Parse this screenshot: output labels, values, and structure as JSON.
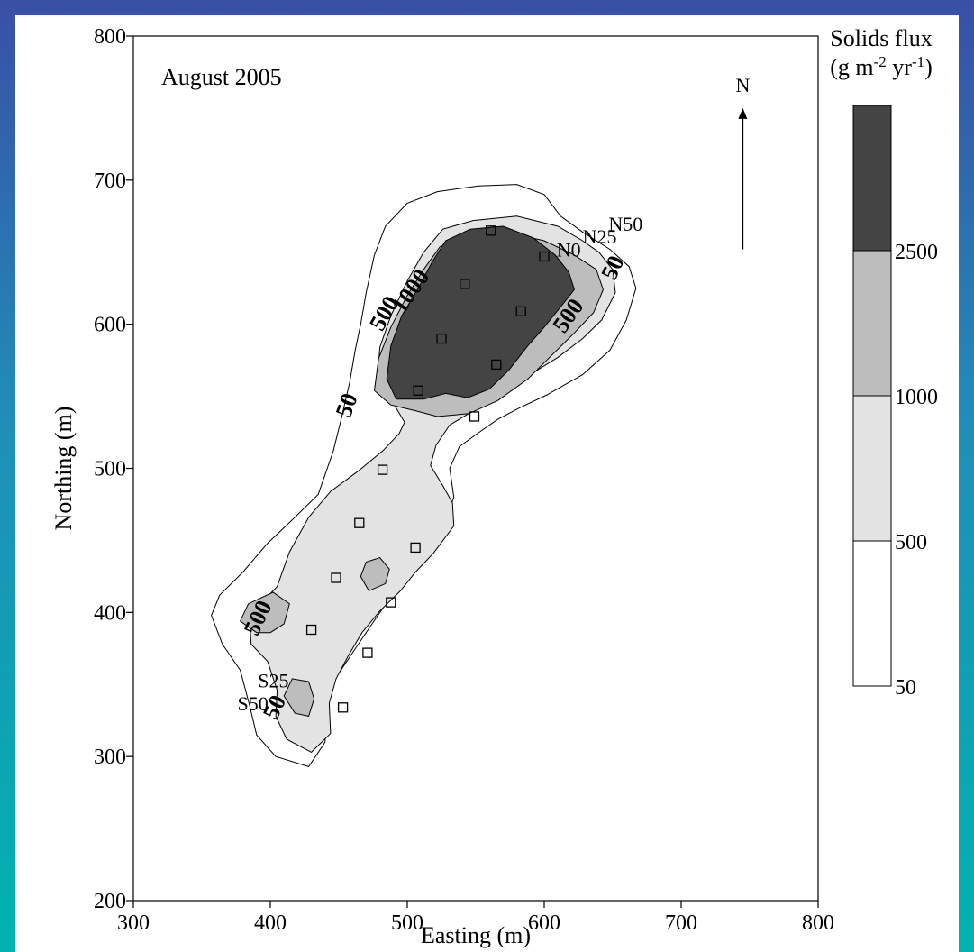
{
  "chart_data": {
    "type": "contour-map",
    "annotation": "August 2005",
    "xlabel": "Easting (m)",
    "ylabel": "Northing (m)",
    "xlim": [
      300,
      800
    ],
    "ylim": [
      200,
      800
    ],
    "x_ticks": [
      300,
      400,
      500,
      600,
      700,
      800
    ],
    "y_ticks": [
      200,
      300,
      400,
      500,
      600,
      700,
      800
    ],
    "grid": false,
    "north_arrow": {
      "label": "N",
      "x": 745,
      "y_from": 652,
      "y_to": 750
    },
    "colorbar": {
      "title_line1": "Solids flux",
      "title_line2": "(g m-2 yr-1)",
      "title_prefix": "(g m",
      "title_sup1": "-2",
      "title_mid": " yr",
      "title_sup2": "-1",
      "title_suffix": ")",
      "placement": "right",
      "levels": [
        {
          "label": "50",
          "color": "#ffffff"
        },
        {
          "label": "500",
          "color": "#e3e3e3"
        },
        {
          "label": "1000",
          "color": "#bdbdbd"
        },
        {
          "label": "2500",
          "color": "#444444"
        }
      ],
      "colors": [
        "#ffffff",
        "#e3e3e3",
        "#bdbdbd",
        "#444444"
      ]
    },
    "contours": [
      {
        "level": 50,
        "fill": "#ffffff",
        "polygons": [
          [
            [
              428,
              293
            ],
            [
              404,
              300
            ],
            [
              390,
              315
            ],
            [
              385,
              335
            ],
            [
              378,
              360
            ],
            [
              365,
              378
            ],
            [
              357,
              398
            ],
            [
              363,
              412
            ],
            [
              380,
              428
            ],
            [
              398,
              448
            ],
            [
              418,
              466
            ],
            [
              435,
              482
            ],
            [
              446,
              512
            ],
            [
              452,
              535
            ],
            [
              458,
              560
            ],
            [
              462,
              582
            ],
            [
              466,
              600
            ],
            [
              470,
              622
            ],
            [
              476,
              648
            ],
            [
              484,
              668
            ],
            [
              500,
              684
            ],
            [
              522,
              692
            ],
            [
              552,
              696
            ],
            [
              580,
              697
            ],
            [
              600,
              690
            ],
            [
              612,
              675
            ],
            [
              628,
              664
            ],
            [
              648,
              652
            ],
            [
              662,
              640
            ],
            [
              667,
              625
            ],
            [
              660,
              603
            ],
            [
              648,
              582
            ],
            [
              628,
              565
            ],
            [
              602,
              551
            ],
            [
              582,
              542
            ],
            [
              566,
              534
            ],
            [
              551,
              524
            ],
            [
              538,
              515
            ],
            [
              531,
              500
            ],
            [
              534,
              480
            ],
            [
              526,
              458
            ],
            [
              514,
              440
            ],
            [
              504,
              428
            ],
            [
              488,
              411
            ],
            [
              475,
              393
            ],
            [
              460,
              372
            ],
            [
              446,
              352
            ],
            [
              440,
              332
            ],
            [
              440,
              310
            ]
          ]
        ]
      },
      {
        "level": 500,
        "fill": "#e3e3e3",
        "polygons": [
          [
            [
              430,
              303
            ],
            [
              412,
              312
            ],
            [
              404,
              328
            ],
            [
              405,
              346
            ],
            [
              398,
              366
            ],
            [
              386,
              378
            ],
            [
              385,
              394
            ],
            [
              395,
              408
            ],
            [
              405,
              418
            ],
            [
              414,
              442
            ],
            [
              428,
              466
            ],
            [
              444,
              484
            ],
            [
              464,
              498
            ],
            [
              482,
              512
            ],
            [
              494,
              524
            ],
            [
              498,
              532
            ],
            [
              490,
              545
            ],
            [
              478,
              560
            ],
            [
              480,
              584
            ],
            [
              488,
              606
            ],
            [
              500,
              630
            ],
            [
              512,
              650
            ],
            [
              526,
              666
            ],
            [
              548,
              672
            ],
            [
              580,
              675
            ],
            [
              610,
              668
            ],
            [
              628,
              658
            ],
            [
              640,
              650
            ],
            [
              650,
              638
            ],
            [
              652,
              622
            ],
            [
              642,
              603
            ],
            [
              628,
              590
            ],
            [
              610,
              577
            ],
            [
              586,
              563
            ],
            [
              568,
              551
            ],
            [
              550,
              541
            ],
            [
              531,
              530
            ],
            [
              521,
              516
            ],
            [
              517,
              502
            ],
            [
              526,
              488
            ],
            [
              533,
              476
            ],
            [
              534,
              460
            ],
            [
              519,
              441
            ],
            [
              506,
              428
            ],
            [
              495,
              415
            ],
            [
              480,
              401
            ],
            [
              467,
              386
            ],
            [
              457,
              370
            ],
            [
              448,
              354
            ],
            [
              443,
              337
            ],
            [
              444,
              316
            ]
          ]
        ]
      },
      {
        "level": 1000,
        "fill": "#bdbdbd",
        "polygons": [
          [
            [
              488,
              544
            ],
            [
              476,
              554
            ],
            [
              479,
              576
            ],
            [
              488,
              598
            ],
            [
              500,
              620
            ],
            [
              512,
              638
            ],
            [
              524,
              654
            ],
            [
              542,
              660
            ],
            [
              572,
              664
            ],
            [
              600,
              658
            ],
            [
              622,
              648
            ],
            [
              638,
              638
            ],
            [
              643,
              624
            ],
            [
              636,
              608
            ],
            [
              622,
              594
            ],
            [
              605,
              578
            ],
            [
              588,
              562
            ],
            [
              566,
              547
            ],
            [
              545,
              538
            ],
            [
              522,
              536
            ],
            [
              506,
              540
            ]
          ],
          [
            [
              418,
              330
            ],
            [
              410,
              342
            ],
            [
              416,
              354
            ],
            [
              428,
              352
            ],
            [
              432,
              340
            ],
            [
              428,
              328
            ]
          ],
          [
            [
              390,
              386
            ],
            [
              378,
              394
            ],
            [
              384,
              406
            ],
            [
              402,
              414
            ],
            [
              414,
              406
            ],
            [
              410,
              392
            ],
            [
              400,
              386
            ]
          ],
          [
            [
              472,
              415
            ],
            [
              466,
              425
            ],
            [
              470,
              435
            ],
            [
              480,
              438
            ],
            [
              487,
              430
            ],
            [
              484,
              420
            ]
          ]
        ]
      },
      {
        "level": 2500,
        "fill": "#444444",
        "polygons": [
          [
            [
              492,
              548
            ],
            [
              485,
              562
            ],
            [
              488,
              585
            ],
            [
              496,
              606
            ],
            [
              508,
              625
            ],
            [
              518,
              643
            ],
            [
              528,
              658
            ],
            [
              546,
              666
            ],
            [
              570,
              668
            ],
            [
              592,
              660
            ],
            [
              608,
              648
            ],
            [
              618,
              636
            ],
            [
              622,
              624
            ],
            [
              612,
              612
            ],
            [
              600,
              598
            ],
            [
              588,
              585
            ],
            [
              574,
              568
            ],
            [
              560,
              555
            ],
            [
              544,
              549
            ],
            [
              528,
              552
            ],
            [
              512,
              548
            ]
          ]
        ]
      }
    ],
    "contour_labels": [
      {
        "text": "1000",
        "x": 507,
        "y": 620,
        "angle": -55
      },
      {
        "text": "500",
        "x": 488,
        "y": 605,
        "angle": -60
      },
      {
        "text": "500",
        "x": 622,
        "y": 603,
        "angle": -55
      },
      {
        "text": "50",
        "x": 655,
        "y": 637,
        "angle": -65
      },
      {
        "text": "50",
        "x": 461,
        "y": 542,
        "angle": -70
      },
      {
        "text": "500",
        "x": 396,
        "y": 394,
        "angle": -65
      },
      {
        "text": "50",
        "x": 408,
        "y": 332,
        "angle": -65
      }
    ],
    "site_labels": [
      {
        "text": "N0",
        "x": 609,
        "y": 647
      },
      {
        "text": "N25",
        "x": 628,
        "y": 656
      },
      {
        "text": "N50",
        "x": 647,
        "y": 665
      },
      {
        "text": "S25",
        "x": 391,
        "y": 348
      },
      {
        "text": "S50",
        "x": 376,
        "y": 332
      }
    ],
    "sample_points": [
      {
        "x": 561,
        "y": 665
      },
      {
        "x": 600,
        "y": 647
      },
      {
        "x": 542,
        "y": 628
      },
      {
        "x": 583,
        "y": 609
      },
      {
        "x": 525,
        "y": 590
      },
      {
        "x": 565,
        "y": 572
      },
      {
        "x": 508,
        "y": 554
      },
      {
        "x": 549,
        "y": 536
      },
      {
        "x": 482,
        "y": 499
      },
      {
        "x": 465,
        "y": 462
      },
      {
        "x": 506,
        "y": 445
      },
      {
        "x": 448,
        "y": 424
      },
      {
        "x": 488,
        "y": 407
      },
      {
        "x": 430,
        "y": 388
      },
      {
        "x": 471,
        "y": 372
      },
      {
        "x": 453,
        "y": 334
      }
    ]
  }
}
